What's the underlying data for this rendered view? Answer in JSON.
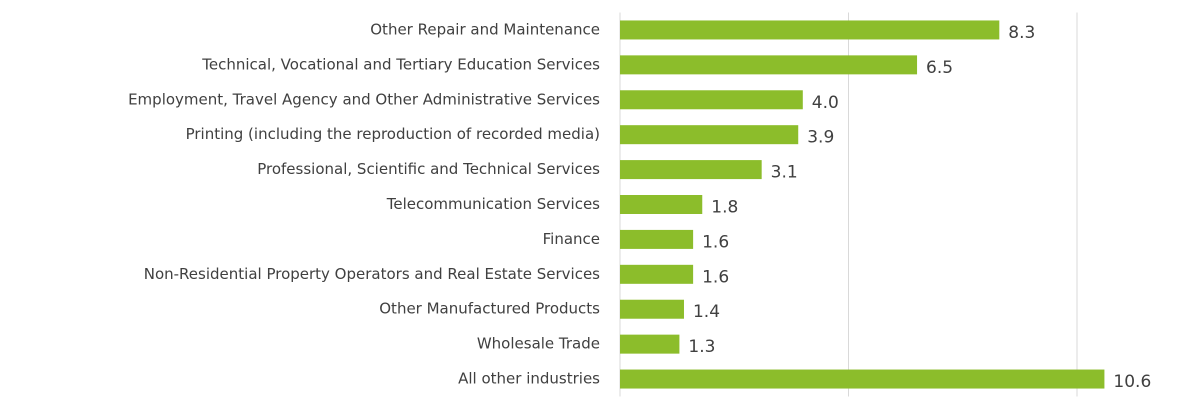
{
  "chart_data": {
    "type": "bar",
    "orientation": "horizontal",
    "categories": [
      "Other Repair and Maintenance",
      "Technical, Vocational and Tertiary Education Services",
      "Employment, Travel Agency and Other Administrative Services",
      "Printing (including the reproduction of recorded media)",
      "Professional, Scientific and Technical Services",
      "Telecommunication Services",
      "Finance",
      "Non-Residential Property Operators and Real Estate Services",
      "Other Manufactured Products",
      "Wholesale Trade",
      "All other industries"
    ],
    "values": [
      8.3,
      6.5,
      4.0,
      3.9,
      3.1,
      1.8,
      1.6,
      1.6,
      1.4,
      1.3,
      10.6
    ],
    "value_labels": [
      "8.3",
      "6.5",
      "4.0",
      "3.9",
      "3.1",
      "1.8",
      "1.6",
      "1.6",
      "1.4",
      "1.3",
      "10.6"
    ],
    "color": "#8cbd2b",
    "xlim": [
      0,
      12
    ],
    "xticks": [
      0,
      5,
      10
    ],
    "grid": true
  }
}
